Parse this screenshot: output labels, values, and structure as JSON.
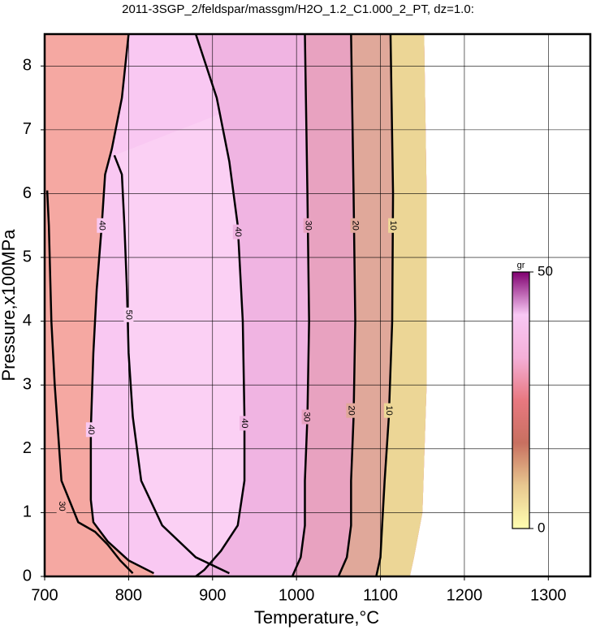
{
  "chart_data": {
    "type": "contour",
    "title": "2011-3SGP_2/feldspar/massgm/H2O_1.2_C1.000_2_PT, dz=1.0:",
    "x_label": "Temperature,°C",
    "y_label": "Pressure,x100MPa",
    "xlim": [
      700,
      1350
    ],
    "ylim": [
      0,
      8.5
    ],
    "xticks": [
      700,
      800,
      900,
      1000,
      1100,
      1200,
      1300
    ],
    "yticks": [
      0,
      1,
      2,
      3,
      4,
      5,
      6,
      7,
      8
    ],
    "grid": true,
    "base_color": "#f5a8a2",
    "domain_edge": {
      "x": [
        1135,
        1140,
        1150,
        1155,
        1155,
        1152
      ],
      "y": [
        0,
        0.3,
        1,
        3,
        6,
        8.5
      ]
    },
    "contours": [
      {
        "level": 30,
        "color": "#f5a8a2",
        "x": [
          703,
          705,
          708,
          712,
          720,
          740,
          760,
          775,
          790,
          805
        ],
        "y": [
          6.05,
          5.5,
          4,
          3,
          1.5,
          0.85,
          0.7,
          0.5,
          0.25,
          0.05
        ],
        "label_x": [
          720
        ],
        "label_y": [
          1.1
        ]
      },
      {
        "level": 40,
        "color": "#f9c8f2",
        "x": [
          800,
          792,
          780,
          772,
          768,
          762,
          758,
          755,
          755,
          758,
          775,
          800,
          830
        ],
        "y": [
          8.5,
          7.5,
          6.7,
          6.3,
          5.5,
          4.5,
          3.5,
          2.3,
          1.2,
          0.85,
          0.55,
          0.25,
          0.05
        ],
        "label_x": [
          768,
          755
        ],
        "label_y": [
          5.5,
          2.3
        ]
      },
      {
        "level": 50,
        "color": "#fbd0f4",
        "x": [
          783,
          792,
          795,
          798,
          800,
          805,
          815,
          840,
          880,
          920
        ],
        "y": [
          6.6,
          6.3,
          5.5,
          4.5,
          3.5,
          2.5,
          1.5,
          0.8,
          0.3,
          0.05
        ],
        "label_x": [
          800
        ],
        "label_y": [
          4.1
        ]
      },
      {
        "level": 40,
        "color": "#f0b4e2",
        "x": [
          880,
          905,
          920,
          930,
          936,
          938,
          938,
          930,
          910,
          890,
          880
        ],
        "y": [
          8.5,
          7.5,
          6.5,
          5.5,
          4,
          2.5,
          1.5,
          0.8,
          0.4,
          0.1,
          0
        ],
        "label_x": [
          930,
          938
        ],
        "label_y": [
          5.4,
          2.4
        ]
      },
      {
        "level": 30,
        "color": "#e8a2c0",
        "x": [
          1010,
          1013,
          1015,
          1013,
          1010,
          1010,
          1005,
          995
        ],
        "y": [
          8.5,
          6,
          4,
          2.5,
          1.5,
          0.8,
          0.3,
          0
        ],
        "label_x": [
          1014,
          1012
        ],
        "label_y": [
          5.5,
          2.5
        ]
      },
      {
        "level": 20,
        "color": "#e0a89a",
        "x": [
          1065,
          1068,
          1070,
          1068,
          1065,
          1065,
          1060,
          1050
        ],
        "y": [
          8.5,
          6,
          4,
          2.5,
          1.5,
          0.8,
          0.3,
          0
        ],
        "label_x": [
          1070,
          1065
        ],
        "label_y": [
          5.5,
          2.6
        ]
      },
      {
        "level": 10,
        "color": "#ecd696",
        "x": [
          1112,
          1115,
          1114,
          1110,
          1105,
          1102,
          1100,
          1095
        ],
        "y": [
          8.5,
          6,
          4,
          2.5,
          1.5,
          0.8,
          0.3,
          0
        ],
        "label_x": [
          1115,
          1110
        ],
        "label_y": [
          5.5,
          2.6
        ]
      }
    ],
    "colorbar": {
      "label": "gr",
      "lim": [
        0,
        50
      ],
      "ticks": [
        0,
        50
      ],
      "colors": [
        "#ffffb0",
        "#e8c890",
        "#c87060",
        "#e87880",
        "#f4b0d8",
        "#f8c8f4",
        "#800070"
      ]
    }
  }
}
